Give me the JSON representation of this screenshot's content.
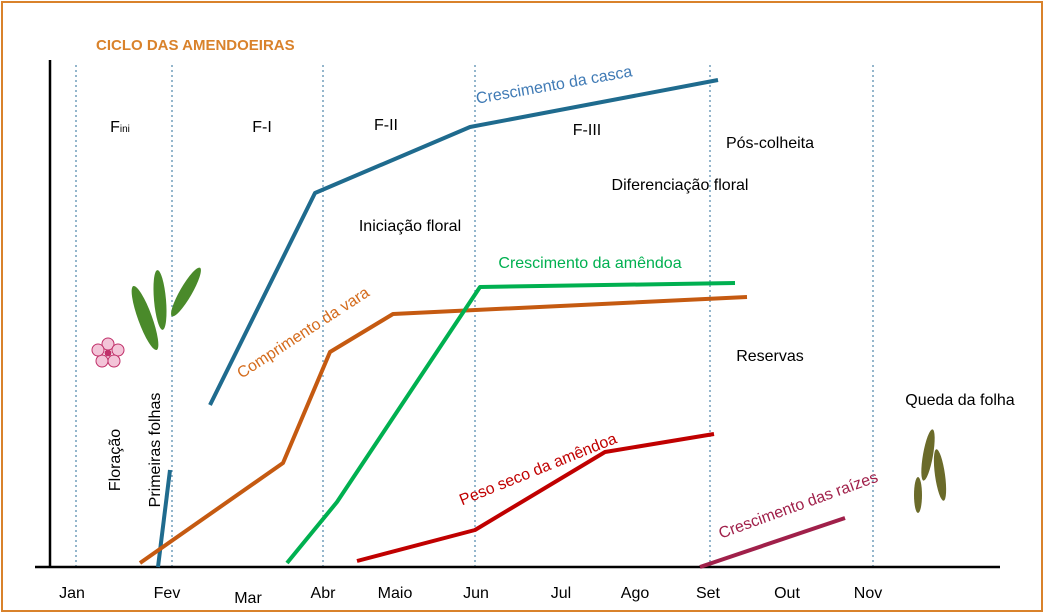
{
  "header": {
    "title": "CICLO DAS AMENDOEIRAS"
  },
  "months": [
    "Jan",
    "Fev",
    "Mar",
    "Abr",
    "Maio",
    "Jun",
    "Jul",
    "Ago",
    "Set",
    "Out",
    "Nov"
  ],
  "phases": {
    "fini": {
      "base": "F",
      "sub": "ini"
    },
    "f1": "F-I",
    "f2": "F-II",
    "f3": "F-III"
  },
  "stages": {
    "pos_colheita": "Pós-colheita",
    "diferenciacao": "Diferenciação floral",
    "iniciacao": "Iniciação floral",
    "reservas": "Reservas",
    "queda": "Queda da folha",
    "floracao": "Floração",
    "primeiras_folhas": "Primeiras folhas"
  },
  "curves": {
    "casca": "Crescimento da casca",
    "vara": "Comprimento da vara",
    "amendoa": "Crescimento da amêndoa",
    "peso": "Peso seco da amêndoa",
    "raizes": "Crescimento das raízes"
  }
}
